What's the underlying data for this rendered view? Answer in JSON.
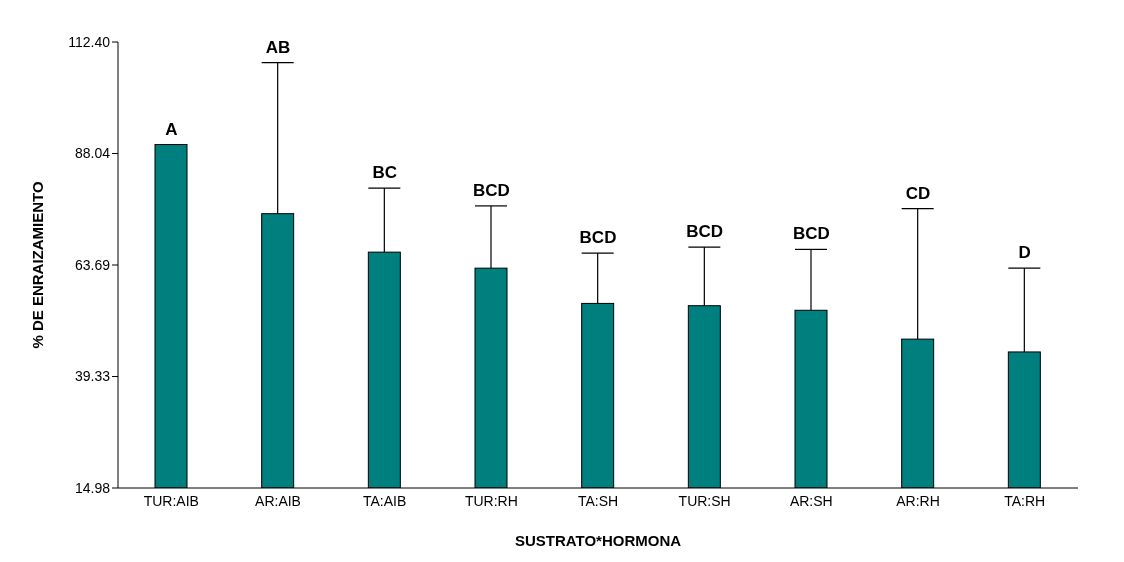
{
  "chart_data": {
    "type": "bar",
    "xlabel": "SUSTRATO*HORMONA",
    "ylabel": "% DE ENRAIZAMIENTO",
    "categories": [
      "TUR:AIB",
      "AR:AIB",
      "TA:AIB",
      "TUR:RH",
      "TA:SH",
      "TUR:SH",
      "AR:SH",
      "AR:RH",
      "TA:RH"
    ],
    "values": [
      90.0,
      74.9,
      66.5,
      63.0,
      55.3,
      54.8,
      53.8,
      47.5,
      44.7
    ],
    "errors": [
      null,
      [
        74.9,
        107.9
      ],
      [
        66.5,
        80.5
      ],
      [
        63.0,
        76.6
      ],
      [
        55.3,
        66.3
      ],
      [
        54.8,
        67.6
      ],
      [
        53.8,
        67.1
      ],
      [
        47.5,
        76.0
      ],
      [
        44.7,
        63.0
      ]
    ],
    "color": "#007f7f",
    "ylim": [
      14.98,
      112.4
    ],
    "yticks": [
      14.98,
      39.33,
      63.69,
      88.04,
      {
        "value": 112.4,
        "label": "112.40"
      }
    ],
    "grid": false,
    "legend": false,
    "annotations": [
      {
        "text": "A",
        "x": "TUR:AIB",
        "y": 90.0
      },
      {
        "text": "AB",
        "x": "AR:AIB",
        "y": 107.9
      },
      {
        "text": "BC",
        "x": "TA:AIB",
        "y": 80.5
      },
      {
        "text": "BCD",
        "x": "TUR:RH",
        "y": 76.6
      },
      {
        "text": "BCD",
        "x": "TA:SH",
        "y": 66.3
      },
      {
        "text": "BCD",
        "x": "TUR:SH",
        "y": 67.6
      },
      {
        "text": "BCD",
        "x": "AR:SH",
        "y": 67.1
      },
      {
        "text": "CD",
        "x": "AR:RH",
        "y": 76.0
      },
      {
        "text": "D",
        "x": "TA:RH",
        "y": 63.0
      }
    ]
  }
}
